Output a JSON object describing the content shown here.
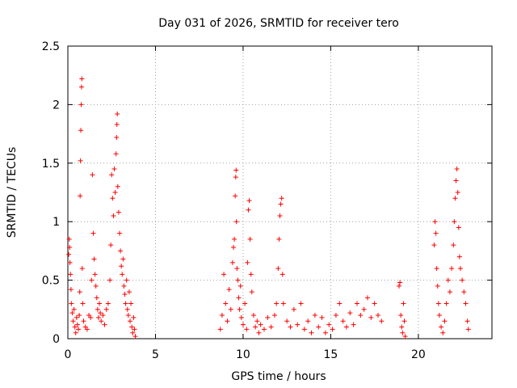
{
  "chart_data": {
    "type": "scatter",
    "title": "Day 031 of 2026, SRMTID for receiver tero",
    "xlabel": "GPS time / hours",
    "ylabel": "SRMTID / TECUs",
    "xlim": [
      0,
      24.2
    ],
    "ylim": [
      0,
      2.5
    ],
    "xticks": [
      0,
      5,
      10,
      15,
      20
    ],
    "xtick_labels": [
      "0",
      "5",
      "10",
      "15",
      "20"
    ],
    "yticks": [
      0,
      0.5,
      1,
      1.5,
      2,
      2.5
    ],
    "ytick_labels": [
      "0",
      "0.5",
      "1",
      "1.5",
      "2",
      "2.5"
    ],
    "grid": true,
    "marker": "+",
    "series": [
      {
        "name": "SRMTID",
        "color": "#ff0000",
        "points": [
          [
            0.05,
            0.72
          ],
          [
            0.08,
            0.85
          ],
          [
            0.1,
            0.78
          ],
          [
            0.12,
            0.65
          ],
          [
            0.15,
            0.55
          ],
          [
            0.18,
            0.42
          ],
          [
            0.2,
            0.3
          ],
          [
            0.25,
            0.22
          ],
          [
            0.3,
            0.15
          ],
          [
            0.35,
            0.25
          ],
          [
            0.4,
            0.1
          ],
          [
            0.45,
            0.05
          ],
          [
            0.5,
            0.18
          ],
          [
            0.55,
            0.12
          ],
          [
            0.6,
            0.08
          ],
          [
            0.65,
            0.2
          ],
          [
            0.68,
            0.4
          ],
          [
            0.7,
            1.22
          ],
          [
            0.72,
            1.52
          ],
          [
            0.74,
            1.78
          ],
          [
            0.76,
            2.0
          ],
          [
            0.78,
            2.15
          ],
          [
            0.8,
            2.22
          ],
          [
            0.82,
            0.6
          ],
          [
            0.85,
            0.3
          ],
          [
            0.9,
            0.15
          ],
          [
            1.0,
            0.1
          ],
          [
            1.1,
            0.08
          ],
          [
            1.2,
            0.2
          ],
          [
            1.3,
            0.18
          ],
          [
            1.35,
            0.5
          ],
          [
            1.4,
            1.4
          ],
          [
            1.45,
            0.9
          ],
          [
            1.5,
            0.68
          ],
          [
            1.55,
            0.55
          ],
          [
            1.6,
            0.45
          ],
          [
            1.65,
            0.35
          ],
          [
            1.7,
            0.25
          ],
          [
            1.75,
            0.18
          ],
          [
            1.8,
            0.3
          ],
          [
            1.85,
            0.22
          ],
          [
            1.9,
            0.15
          ],
          [
            2.0,
            0.2
          ],
          [
            2.1,
            0.12
          ],
          [
            2.2,
            0.25
          ],
          [
            2.3,
            0.3
          ],
          [
            2.4,
            0.5
          ],
          [
            2.45,
            0.8
          ],
          [
            2.5,
            1.4
          ],
          [
            2.55,
            1.2
          ],
          [
            2.6,
            1.05
          ],
          [
            2.65,
            1.45
          ],
          [
            2.7,
            1.25
          ],
          [
            2.75,
            1.58
          ],
          [
            2.78,
            1.72
          ],
          [
            2.8,
            1.83
          ],
          [
            2.82,
            1.92
          ],
          [
            2.85,
            1.3
          ],
          [
            2.9,
            1.08
          ],
          [
            2.95,
            0.9
          ],
          [
            3.0,
            0.75
          ],
          [
            3.05,
            0.62
          ],
          [
            3.1,
            0.55
          ],
          [
            3.15,
            0.68
          ],
          [
            3.2,
            0.45
          ],
          [
            3.25,
            0.38
          ],
          [
            3.3,
            0.3
          ],
          [
            3.35,
            0.5
          ],
          [
            3.4,
            0.25
          ],
          [
            3.45,
            0.2
          ],
          [
            3.5,
            0.4
          ],
          [
            3.55,
            0.15
          ],
          [
            3.6,
            0.3
          ],
          [
            3.65,
            0.1
          ],
          [
            3.7,
            0.05
          ],
          [
            3.75,
            0.18
          ],
          [
            3.8,
            0.08
          ],
          [
            3.85,
            0.02
          ],
          [
            8.7,
            0.08
          ],
          [
            8.8,
            0.2
          ],
          [
            8.9,
            0.55
          ],
          [
            9.0,
            0.3
          ],
          [
            9.1,
            0.15
          ],
          [
            9.2,
            0.42
          ],
          [
            9.3,
            0.25
          ],
          [
            9.4,
            0.65
          ],
          [
            9.45,
            0.78
          ],
          [
            9.5,
            0.85
          ],
          [
            9.55,
            1.22
          ],
          [
            9.58,
            1.38
          ],
          [
            9.6,
            1.44
          ],
          [
            9.62,
            1.0
          ],
          [
            9.65,
            0.6
          ],
          [
            9.7,
            0.5
          ],
          [
            9.75,
            0.35
          ],
          [
            9.8,
            0.25
          ],
          [
            9.85,
            0.45
          ],
          [
            9.9,
            0.18
          ],
          [
            10.0,
            0.12
          ],
          [
            10.1,
            0.3
          ],
          [
            10.2,
            0.08
          ],
          [
            10.25,
            0.65
          ],
          [
            10.3,
            1.1
          ],
          [
            10.35,
            1.18
          ],
          [
            10.4,
            0.85
          ],
          [
            10.45,
            0.55
          ],
          [
            10.5,
            0.4
          ],
          [
            10.6,
            0.2
          ],
          [
            10.7,
            0.1
          ],
          [
            10.8,
            0.15
          ],
          [
            10.9,
            0.05
          ],
          [
            11.0,
            0.12
          ],
          [
            11.2,
            0.08
          ],
          [
            11.4,
            0.18
          ],
          [
            11.6,
            0.1
          ],
          [
            11.8,
            0.2
          ],
          [
            11.9,
            0.3
          ],
          [
            12.0,
            0.6
          ],
          [
            12.05,
            0.85
          ],
          [
            12.1,
            1.05
          ],
          [
            12.15,
            1.15
          ],
          [
            12.2,
            1.2
          ],
          [
            12.25,
            0.55
          ],
          [
            12.3,
            0.3
          ],
          [
            12.5,
            0.15
          ],
          [
            12.7,
            0.1
          ],
          [
            12.9,
            0.25
          ],
          [
            13.1,
            0.12
          ],
          [
            13.3,
            0.3
          ],
          [
            13.5,
            0.08
          ],
          [
            13.7,
            0.15
          ],
          [
            13.9,
            0.05
          ],
          [
            14.1,
            0.2
          ],
          [
            14.3,
            0.1
          ],
          [
            14.5,
            0.18
          ],
          [
            14.7,
            0.05
          ],
          [
            14.9,
            0.12
          ],
          [
            15.1,
            0.08
          ],
          [
            15.3,
            0.2
          ],
          [
            15.5,
            0.3
          ],
          [
            15.7,
            0.15
          ],
          [
            15.9,
            0.1
          ],
          [
            16.1,
            0.22
          ],
          [
            16.3,
            0.12
          ],
          [
            16.5,
            0.3
          ],
          [
            16.7,
            0.2
          ],
          [
            16.9,
            0.25
          ],
          [
            17.1,
            0.35
          ],
          [
            17.3,
            0.18
          ],
          [
            17.5,
            0.3
          ],
          [
            17.7,
            0.2
          ],
          [
            17.9,
            0.15
          ],
          [
            18.9,
            0.45
          ],
          [
            18.95,
            0.48
          ],
          [
            19.0,
            0.2
          ],
          [
            19.05,
            0.1
          ],
          [
            19.1,
            0.05
          ],
          [
            19.15,
            0.3
          ],
          [
            19.2,
            0.15
          ],
          [
            19.25,
            0.02
          ],
          [
            20.9,
            0.8
          ],
          [
            20.95,
            1.0
          ],
          [
            21.0,
            0.9
          ],
          [
            21.05,
            0.6
          ],
          [
            21.1,
            0.45
          ],
          [
            21.15,
            0.3
          ],
          [
            21.2,
            0.2
          ],
          [
            21.3,
            0.1
          ],
          [
            21.4,
            0.05
          ],
          [
            21.5,
            0.15
          ],
          [
            21.6,
            0.3
          ],
          [
            21.7,
            0.5
          ],
          [
            21.8,
            0.4
          ],
          [
            21.9,
            0.6
          ],
          [
            22.0,
            0.8
          ],
          [
            22.05,
            1.0
          ],
          [
            22.1,
            1.2
          ],
          [
            22.15,
            1.35
          ],
          [
            22.2,
            1.45
          ],
          [
            22.25,
            1.25
          ],
          [
            22.3,
            0.95
          ],
          [
            22.35,
            0.7
          ],
          [
            22.4,
            0.6
          ],
          [
            22.5,
            0.5
          ],
          [
            22.6,
            0.4
          ],
          [
            22.7,
            0.3
          ],
          [
            22.8,
            0.15
          ],
          [
            22.85,
            0.08
          ]
        ]
      }
    ]
  }
}
